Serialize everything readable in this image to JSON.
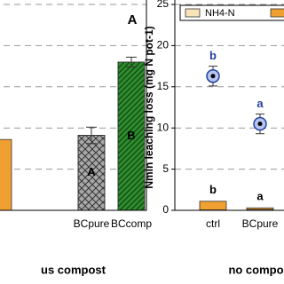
{
  "chart_data": [
    {
      "type": "bar",
      "panel_label": "A",
      "xlabel": "us compost",
      "categories": [
        null,
        "BCpure",
        "BCcomp"
      ],
      "ylim": [
        0,
        25
      ],
      "yticks": [
        5,
        10,
        15,
        20,
        25
      ],
      "grid": true,
      "series": [
        {
          "values": [
            8.6,
            9.1,
            18.0
          ],
          "errors": [
            null,
            1.0,
            0.6
          ],
          "colors": [
            "#f0a030",
            "#a8a8a8",
            "#2e8b2e"
          ],
          "hatches": [
            null,
            "cross",
            "diag"
          ]
        }
      ],
      "bar_letters": [
        null,
        "A",
        "B"
      ]
    },
    {
      "type": "bar",
      "ylabel": "Nmin leaching loss (mg N pot-1)",
      "xlabel": "no compo",
      "categories": [
        "ctrl",
        "BCpure"
      ],
      "ylim": [
        0,
        25
      ],
      "yticks": [
        0,
        5,
        10,
        15,
        20,
        25
      ],
      "grid": true,
      "series": [
        {
          "name": "NH4-N",
          "color": "#f8e4b8",
          "values": [
            0.05,
            0.1
          ]
        },
        {
          "color": "#f0a030",
          "values": [
            1.05,
            0.2
          ]
        }
      ],
      "bar_letters": [
        "b",
        "a"
      ],
      "points": {
        "color": "#2040a0",
        "values": [
          16.3,
          10.5
        ],
        "errors": [
          1.2,
          1.2
        ],
        "letters": [
          "b",
          "a"
        ]
      }
    }
  ]
}
